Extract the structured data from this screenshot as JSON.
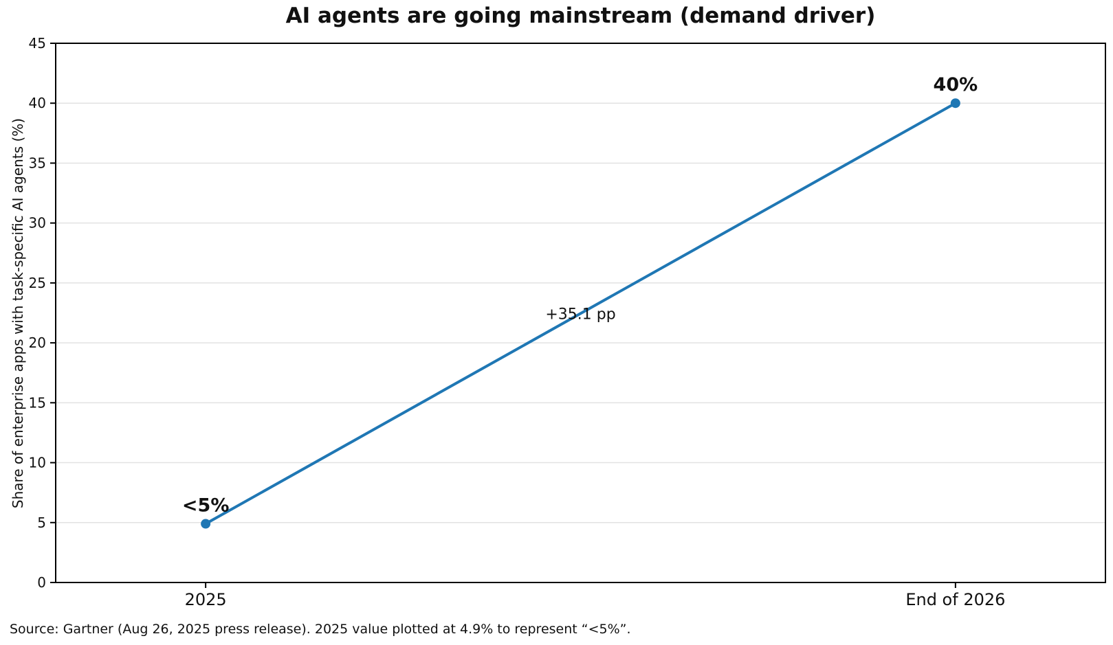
{
  "chart_data": {
    "type": "line",
    "title": "AI agents are going mainstream (demand driver)",
    "ylabel": "Share of enterprise apps with task-specific AI agents (%)",
    "xlabel": "",
    "categories": [
      "2025",
      "End of 2026"
    ],
    "x": [
      0,
      1
    ],
    "values": [
      4.9,
      40
    ],
    "point_labels": [
      "<5%",
      "40%"
    ],
    "segment_annotation": "+35.1 pp",
    "xlim": [
      -0.2,
      1.2
    ],
    "ylim": [
      0,
      45
    ],
    "yticks": [
      0,
      5,
      10,
      15,
      20,
      25,
      30,
      35,
      40,
      45
    ],
    "grid": "horizontal",
    "legend": "none",
    "colors": {
      "line": "#1f77b4",
      "marker": "#1f77b4",
      "grid": "#e2e2e2",
      "axis": "#000000",
      "text": "#111111"
    },
    "source_note": "Source: Gartner (Aug 26, 2025 press release). 2025 value plotted at 4.9% to represent “<5%”."
  }
}
